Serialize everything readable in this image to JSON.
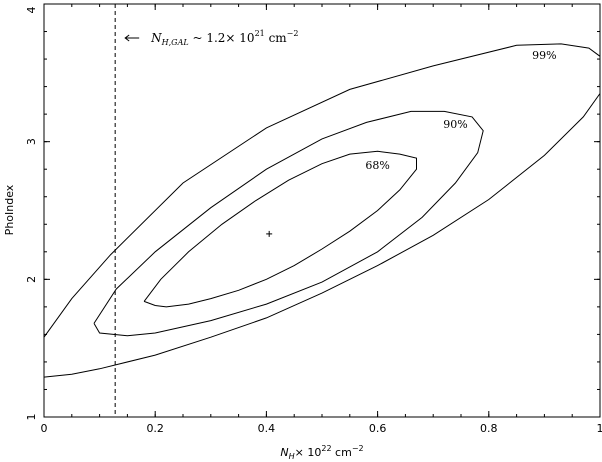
{
  "chart_data": {
    "type": "contour",
    "xlabel": {
      "main": "N",
      "sub": "H",
      "mid": "× 10",
      "sup": "22",
      "unit": " cm",
      "unit_sup": "−2"
    },
    "ylabel": "PhoIndex",
    "xlim": [
      0,
      1
    ],
    "ylim": [
      1,
      4
    ],
    "xticks": [
      "0",
      "0.2",
      "0.4",
      "0.6",
      "0.8",
      "1"
    ],
    "yticks": [
      "1",
      "2",
      "3",
      "4"
    ],
    "best_fit": {
      "x": 0.405,
      "y": 2.33
    },
    "galactic_nh": {
      "x": 0.128,
      "label_main": "N",
      "label_sub": "H,GAL",
      "label_mid": " ~ 1.2× 10",
      "label_sup": "21",
      "label_unit": " cm",
      "label_unit_sup": "−2"
    },
    "contours": [
      {
        "level": "68%",
        "label_pos": {
          "x": 0.6,
          "y": 2.8
        },
        "points": [
          [
            0.18,
            1.84
          ],
          [
            0.2,
            1.81
          ],
          [
            0.22,
            1.8
          ],
          [
            0.26,
            1.82
          ],
          [
            0.3,
            1.86
          ],
          [
            0.35,
            1.92
          ],
          [
            0.4,
            2.0
          ],
          [
            0.45,
            2.1
          ],
          [
            0.5,
            2.22
          ],
          [
            0.55,
            2.35
          ],
          [
            0.6,
            2.5
          ],
          [
            0.64,
            2.65
          ],
          [
            0.67,
            2.8
          ],
          [
            0.67,
            2.88
          ],
          [
            0.64,
            2.91
          ],
          [
            0.6,
            2.93
          ],
          [
            0.55,
            2.91
          ],
          [
            0.5,
            2.84
          ],
          [
            0.44,
            2.72
          ],
          [
            0.38,
            2.57
          ],
          [
            0.32,
            2.4
          ],
          [
            0.26,
            2.2
          ],
          [
            0.21,
            2.0
          ],
          [
            0.18,
            1.84
          ]
        ]
      },
      {
        "level": "90%",
        "label_pos": {
          "x": 0.74,
          "y": 3.1
        },
        "points": [
          [
            0.09,
            1.68
          ],
          [
            0.1,
            1.61
          ],
          [
            0.15,
            1.59
          ],
          [
            0.2,
            1.61
          ],
          [
            0.3,
            1.7
          ],
          [
            0.4,
            1.82
          ],
          [
            0.5,
            1.98
          ],
          [
            0.6,
            2.2
          ],
          [
            0.68,
            2.45
          ],
          [
            0.74,
            2.7
          ],
          [
            0.78,
            2.92
          ],
          [
            0.79,
            3.08
          ],
          [
            0.77,
            3.18
          ],
          [
            0.72,
            3.22
          ],
          [
            0.66,
            3.22
          ],
          [
            0.58,
            3.14
          ],
          [
            0.5,
            3.02
          ],
          [
            0.4,
            2.8
          ],
          [
            0.3,
            2.52
          ],
          [
            0.2,
            2.2
          ],
          [
            0.13,
            1.93
          ],
          [
            0.09,
            1.68
          ]
        ]
      },
      {
        "level": "99%",
        "label_pos": {
          "x": 0.9,
          "y": 3.6
        },
        "points": [
          [
            0.0,
            1.29
          ],
          [
            0.05,
            1.31
          ],
          [
            0.1,
            1.35
          ],
          [
            0.2,
            1.45
          ],
          [
            0.3,
            1.58
          ],
          [
            0.4,
            1.72
          ],
          [
            0.5,
            1.9
          ],
          [
            0.6,
            2.1
          ],
          [
            0.7,
            2.32
          ],
          [
            0.8,
            2.58
          ],
          [
            0.9,
            2.9
          ],
          [
            0.97,
            3.18
          ],
          [
            1.0,
            3.35
          ],
          [
            1.0,
            3.62
          ],
          [
            0.98,
            3.68
          ],
          [
            0.93,
            3.71
          ],
          [
            0.85,
            3.7
          ],
          [
            0.7,
            3.55
          ],
          [
            0.55,
            3.38
          ],
          [
            0.4,
            3.1
          ],
          [
            0.25,
            2.7
          ],
          [
            0.12,
            2.18
          ],
          [
            0.05,
            1.86
          ],
          [
            0.0,
            1.58
          ]
        ]
      }
    ]
  }
}
